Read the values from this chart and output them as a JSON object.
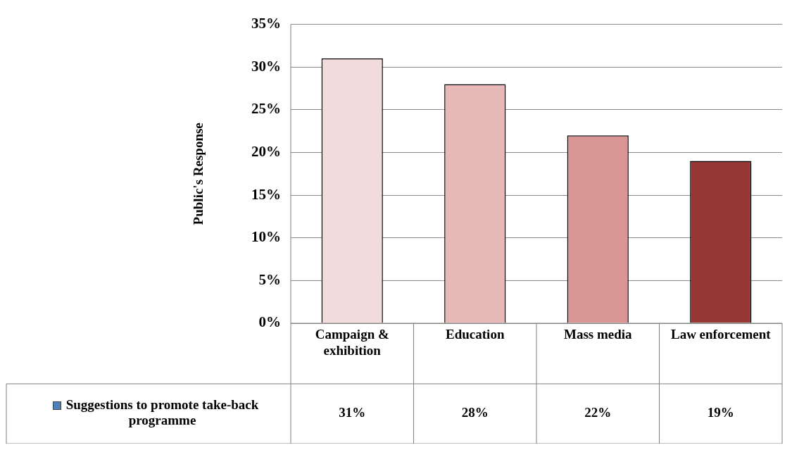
{
  "chart_data": {
    "type": "bar",
    "categories": [
      "Campaign & exhibition",
      "Education",
      "Mass media",
      "Law enforcement"
    ],
    "series": [
      {
        "name": "Suggestions to promote take-back programme",
        "color": "#4f81bd",
        "colors": [
          "#f2dcdb",
          "#e6b9b8",
          "#d99694",
          "#953735"
        ],
        "values": [
          31,
          28,
          22,
          19
        ],
        "value_labels": [
          "31%",
          "28%",
          "22%",
          "19%"
        ]
      }
    ],
    "ylabel": "Public's Response",
    "ylim": [
      0,
      35
    ],
    "yticks": [
      {
        "value": 0,
        "label": "0%"
      },
      {
        "value": 5,
        "label": "5%"
      },
      {
        "value": 10,
        "label": "10%"
      },
      {
        "value": 15,
        "label": "15%"
      },
      {
        "value": 20,
        "label": "20%"
      },
      {
        "value": 25,
        "label": "25%"
      },
      {
        "value": 30,
        "label": "30%"
      },
      {
        "value": 35,
        "label": "35%"
      }
    ],
    "grid": "y",
    "legend": "bottom left"
  }
}
